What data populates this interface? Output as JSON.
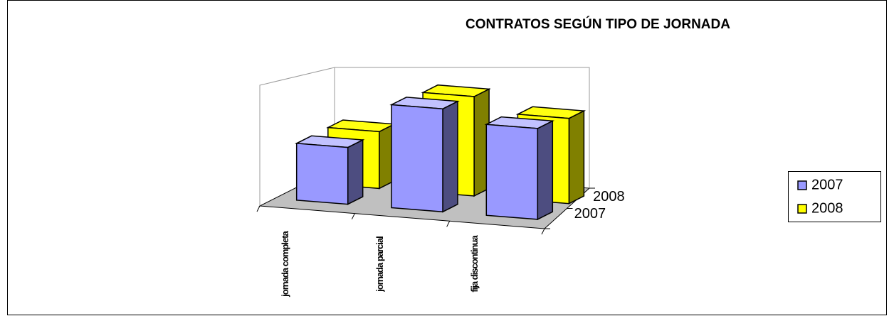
{
  "chart_data": {
    "type": "bar3d",
    "title": "CONTRATOS SEGÚN TIPO DE JORNADA",
    "categories": [
      "jornada completa",
      "jornada parcial",
      "fija discontinua"
    ],
    "series": [
      {
        "name": "2007",
        "color": "#9999ff",
        "values": [
          80,
          145,
          128
        ]
      },
      {
        "name": "2008",
        "color": "#ffff00",
        "values": [
          80,
          140,
          120
        ]
      }
    ],
    "legend": "right"
  }
}
